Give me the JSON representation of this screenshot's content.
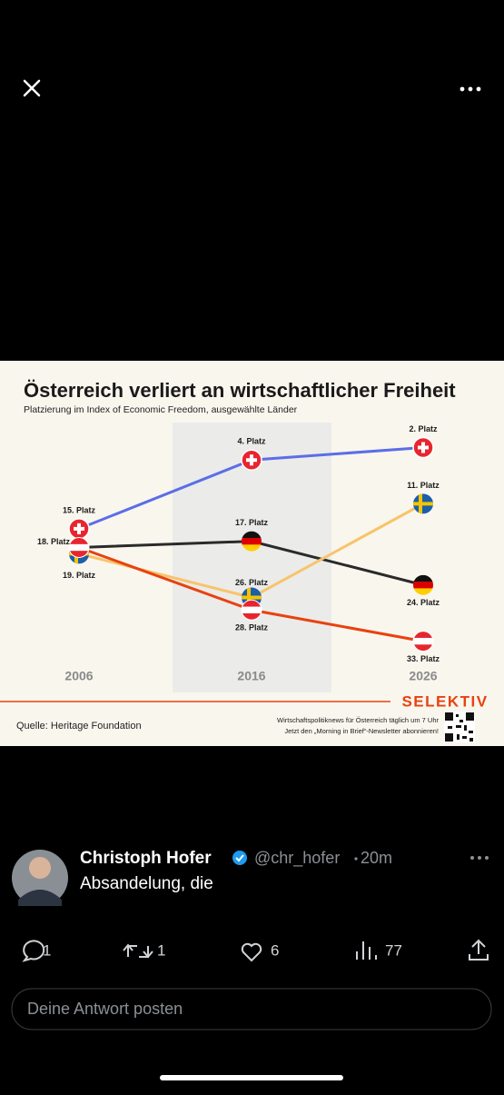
{
  "chart_data": {
    "type": "line",
    "title": "Österreich verliert an wirtschaftlicher Freiheit",
    "subtitle": "Platzierung im Index of Economic Freedom, ausgewählte Länder",
    "categories": [
      "2006",
      "2016",
      "2026"
    ],
    "ylim": [
      38,
      -2
    ],
    "series": [
      {
        "color": "#5b6ee6",
        "marker": "swiss-flag",
        "values": [
          15,
          4,
          2
        ],
        "value_labels": [
          "15. Platz",
          "4. Platz",
          "2. Platz"
        ]
      },
      {
        "color": "#2a2a2a",
        "marker": "german-flag",
        "values": [
          18,
          17,
          24
        ],
        "value_labels": [
          null,
          "17. Platz",
          "24. Platz"
        ]
      },
      {
        "color": "#f8c46a",
        "marker": "swedish-flag",
        "values": [
          19,
          26,
          11
        ],
        "value_labels": [
          "19. Platz",
          "26. Platz",
          "11. Platz"
        ]
      },
      {
        "color": "#e8420f",
        "marker": "austrian-flag",
        "values": [
          18,
          28,
          33
        ],
        "value_labels": [
          "18. Platz",
          "28. Platz",
          "33. Platz"
        ]
      }
    ],
    "source": "Quelle: Heritage Foundation",
    "brand": "SELEKTIV",
    "promo": [
      "Wirtschaftspolitiknews für Österreich täglich um 7 Uhr",
      "Jetzt den „Morning in Brief“-Newsletter abonnieren!"
    ]
  },
  "post": {
    "author": "Christoph Hofer",
    "handle": "@chr_hofer",
    "time": "20m",
    "text": "Absandelung, die",
    "replies": 1,
    "reposts": 1,
    "likes": 6,
    "views": 77
  },
  "reply_placeholder": "Deine Antwort posten"
}
